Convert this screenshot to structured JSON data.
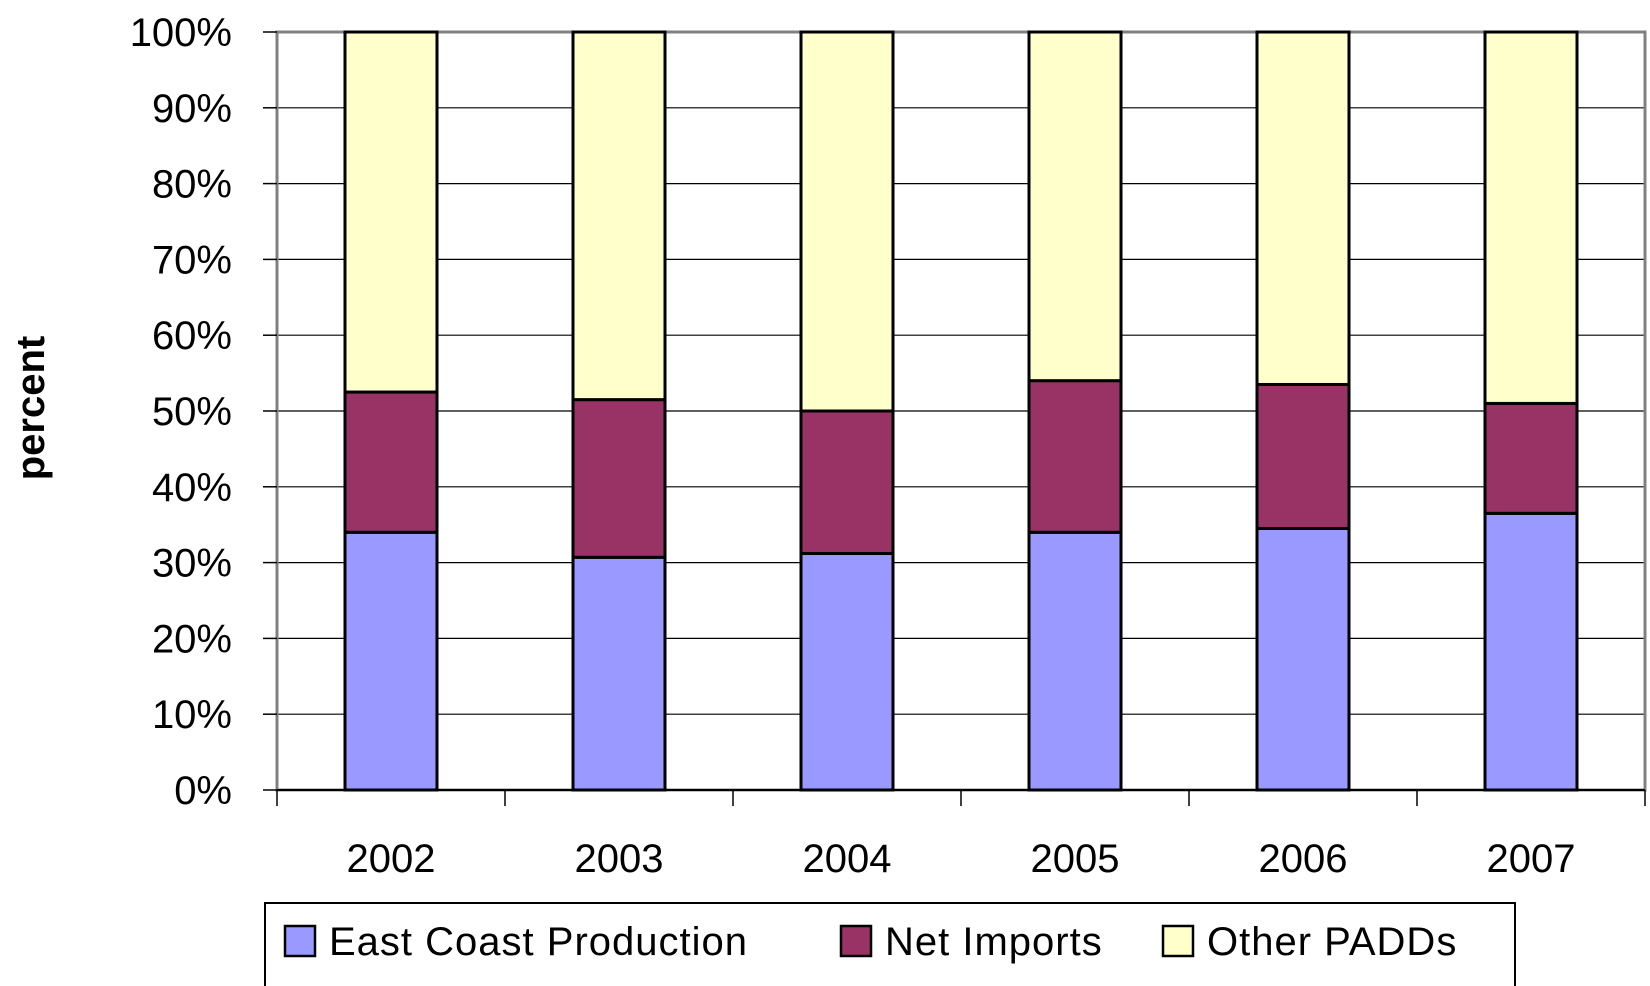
{
  "chart_data": {
    "type": "bar",
    "stacked": true,
    "percent_stacked": true,
    "ylabel": "percent",
    "ylim": [
      0,
      100
    ],
    "yticks": [
      "0%",
      "10%",
      "20%",
      "30%",
      "40%",
      "50%",
      "60%",
      "70%",
      "80%",
      "90%",
      "100%"
    ],
    "grid": true,
    "legend_position": "bottom",
    "categories": [
      "2002",
      "2003",
      "2004",
      "2005",
      "2006",
      "2007"
    ],
    "series": [
      {
        "name": "East Coast Production",
        "color": "#9999ff",
        "values": [
          34,
          30.7,
          31.2,
          34,
          34.5,
          36.5
        ]
      },
      {
        "name": "Net Imports",
        "color": "#993366",
        "values": [
          18.5,
          20.8,
          18.8,
          20,
          19,
          14.5
        ]
      },
      {
        "name": "Other PADDs",
        "color": "#ffffcc",
        "values": [
          47.5,
          48.5,
          50,
          46,
          46.5,
          49
        ]
      }
    ]
  }
}
